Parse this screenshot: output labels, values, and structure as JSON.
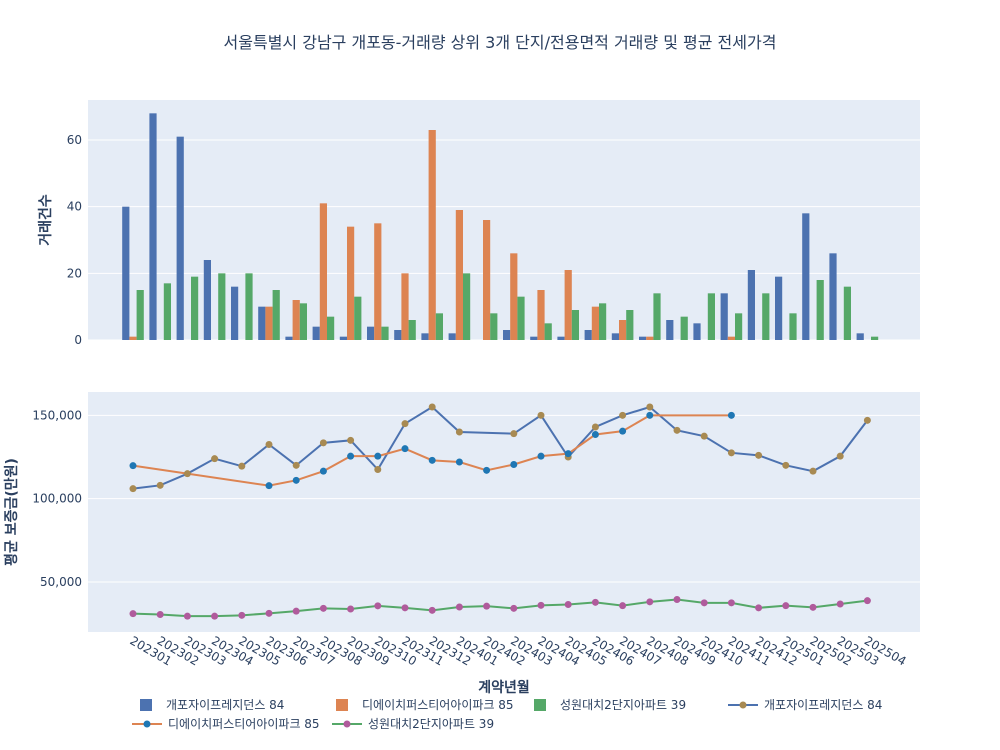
{
  "chart_data": {
    "type": "bar+line",
    "title": "서울특별시 강남구 개포동-거래량 상위 3개 단지/전용면적 거래량 및 평균 전세가격",
    "xlabel": "계약년월",
    "categories": [
      "202301",
      "202302",
      "202303",
      "202304",
      "202305",
      "202306",
      "202307",
      "202308",
      "202309",
      "202310",
      "202311",
      "202312",
      "202401",
      "202402",
      "202403",
      "202404",
      "202405",
      "202406",
      "202407",
      "202408",
      "202409",
      "202410",
      "202411",
      "202412",
      "202501",
      "202502",
      "202503",
      "202504"
    ],
    "top": {
      "ylabel": "거래건수",
      "ylim": [
        0,
        72
      ],
      "yticks": [
        0,
        20,
        40,
        60
      ],
      "ytick_labels": [
        "0",
        "20",
        "40",
        "60"
      ],
      "series": [
        {
          "name": "개포자이프레지던스 84",
          "color": "#4c72b0",
          "values": [
            40,
            68,
            61,
            24,
            16,
            10,
            1,
            4,
            1,
            4,
            3,
            2,
            2,
            null,
            3,
            1,
            1,
            3,
            2,
            1,
            6,
            5,
            14,
            21,
            19,
            38,
            26,
            2
          ]
        },
        {
          "name": "디에이치퍼스티어아이파크 85",
          "color": "#dd8452",
          "values": [
            1,
            null,
            null,
            null,
            null,
            10,
            12,
            41,
            34,
            35,
            20,
            63,
            39,
            36,
            26,
            15,
            21,
            10,
            6,
            1,
            null,
            null,
            1,
            null,
            null,
            null,
            null,
            null
          ]
        },
        {
          "name": "성원대치2단지아파트 39",
          "color": "#55a868",
          "values": [
            15,
            17,
            19,
            20,
            20,
            15,
            11,
            7,
            13,
            4,
            6,
            8,
            20,
            8,
            13,
            5,
            9,
            11,
            9,
            14,
            7,
            14,
            8,
            14,
            8,
            18,
            16,
            1
          ]
        }
      ]
    },
    "bottom": {
      "ylabel": "평균 보증금(만원)",
      "ylim": [
        20000,
        164000
      ],
      "yticks": [
        50000,
        100000,
        150000
      ],
      "ytick_labels": [
        "50,000",
        "100,000",
        "150,000"
      ],
      "series": [
        {
          "name": "개포자이프레지던스 84",
          "color": "#4c72b0",
          "marker": "#a88a52",
          "values": [
            106000,
            108000,
            115000,
            124000,
            119500,
            132500,
            120000,
            133500,
            135000,
            117500,
            145000,
            155000,
            140000,
            null,
            139000,
            150000,
            125000,
            143000,
            150000,
            155000,
            141000,
            137500,
            127500,
            126000,
            120000,
            116500,
            125500,
            147000
          ]
        },
        {
          "name": "디에이치퍼스티어아이파크 85",
          "color": "#dd8452",
          "marker": "#1f77b4",
          "values": [
            119800,
            null,
            null,
            null,
            null,
            107800,
            111000,
            116500,
            125500,
            125500,
            130000,
            123000,
            122000,
            117000,
            120500,
            125500,
            127000,
            138500,
            140500,
            150000,
            null,
            null,
            150000,
            null,
            null,
            null,
            null,
            null
          ]
        },
        {
          "name": "성원대치2단지아파트 39",
          "color": "#55a868",
          "marker": "#b05b9c",
          "values": [
            31000,
            30500,
            29500,
            29500,
            30000,
            31200,
            32500,
            34200,
            33800,
            35700,
            34500,
            33000,
            35000,
            35500,
            34200,
            36000,
            36500,
            37800,
            35800,
            38100,
            39500,
            37500,
            37500,
            34500,
            35800,
            34800,
            36800,
            38800
          ]
        }
      ]
    },
    "legend": {
      "placement": "bottom",
      "entries": [
        "개포자이프레지던스 84",
        "디에이치퍼스티어아이파크 85",
        "성원대치2단지아파트 39",
        "개포자이프레지던스 84",
        "디에이치퍼스티어아이파크 85",
        "성원대치2단지아파트 39"
      ]
    }
  }
}
